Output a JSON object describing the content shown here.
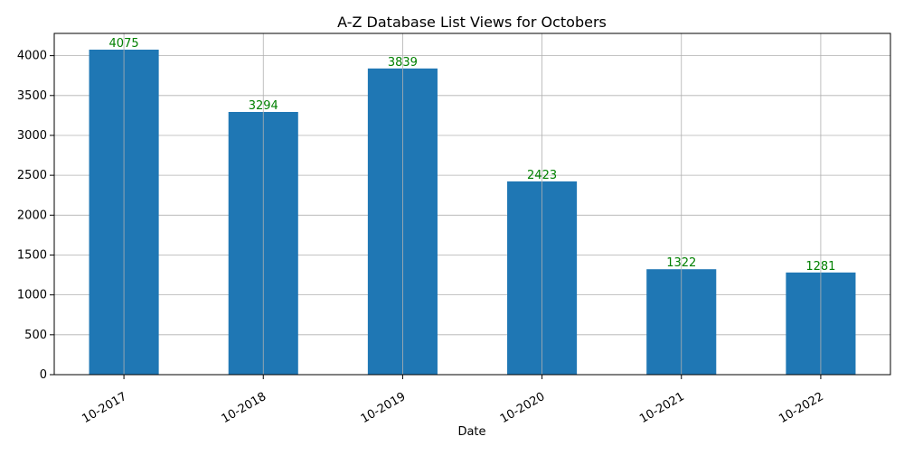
{
  "chart_data": {
    "type": "bar",
    "title": "A-Z Database List Views for Octobers",
    "xlabel": "Date",
    "ylabel": "",
    "categories": [
      "10-2017",
      "10-2018",
      "10-2019",
      "10-2020",
      "10-2021",
      "10-2022"
    ],
    "values": [
      4075,
      3294,
      3839,
      2423,
      1322,
      1281
    ],
    "data_labels": [
      "4075",
      "3294",
      "3839",
      "2423",
      "1322",
      "1281"
    ],
    "ylim": [
      0,
      4278.75
    ],
    "yticks": [
      0,
      500,
      1000,
      1500,
      2000,
      2500,
      3000,
      3500,
      4000
    ],
    "ytick_labels": [
      "0",
      "500",
      "1000",
      "1500",
      "2000",
      "2500",
      "3000",
      "3500",
      "4000"
    ],
    "grid": true,
    "legend": "none",
    "colors": {
      "bar": "#1f77b4",
      "data_label": "#008000",
      "grid": "#b0b0b0",
      "axis": "#000000"
    }
  }
}
